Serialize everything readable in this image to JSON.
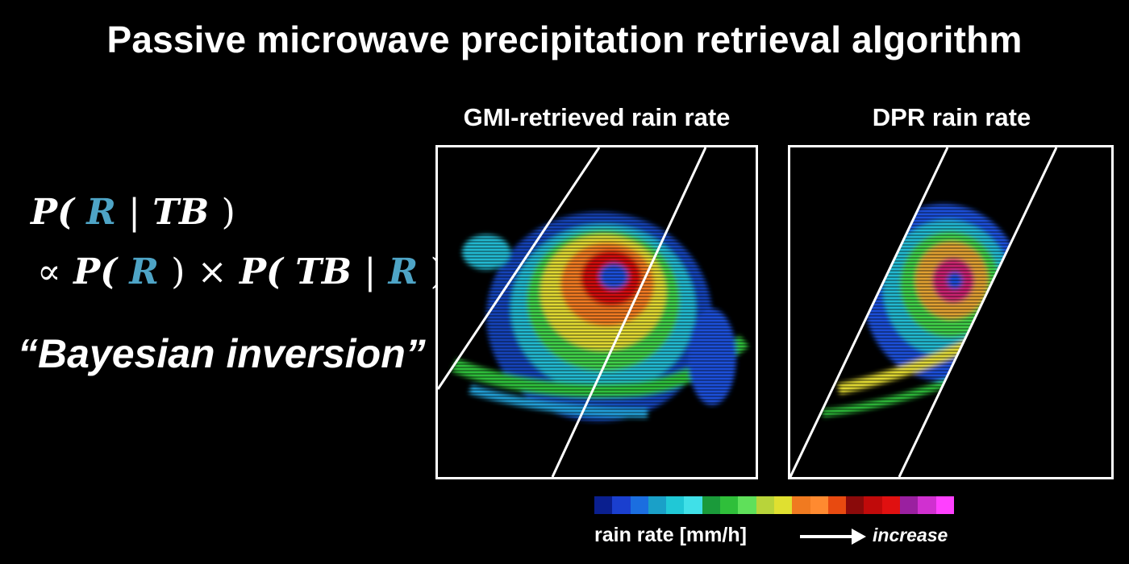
{
  "title": "Passive microwave precipitation retrieval algorithm",
  "equation": {
    "line1": [
      "P(",
      "R",
      "|",
      "TB",
      ")"
    ],
    "line2": [
      "∝",
      "P(",
      "R",
      ")",
      "×",
      "P(",
      "TB",
      "|",
      "R",
      ")"
    ]
  },
  "bayes_text": "“Bayesian inversion”",
  "panels": {
    "gmi": {
      "title": "GMI-retrieved rain rate"
    },
    "dpr": {
      "title": "DPR rain rate"
    }
  },
  "colorbar": {
    "label": "rain rate [mm/h]",
    "increase": "increase",
    "colors": [
      "#0a1f8f",
      "#1a3fcf",
      "#1b6ee0",
      "#1aa0c8",
      "#20c8d6",
      "#40e0e8",
      "#1a9a3a",
      "#2fbf3a",
      "#5fe05a",
      "#b8d43a",
      "#e0e030",
      "#f07a20",
      "#ff8a30",
      "#e84a10",
      "#8a0a0a",
      "#c00a0a",
      "#e01010",
      "#9a20a0",
      "#d030d0",
      "#ff40ff"
    ]
  }
}
